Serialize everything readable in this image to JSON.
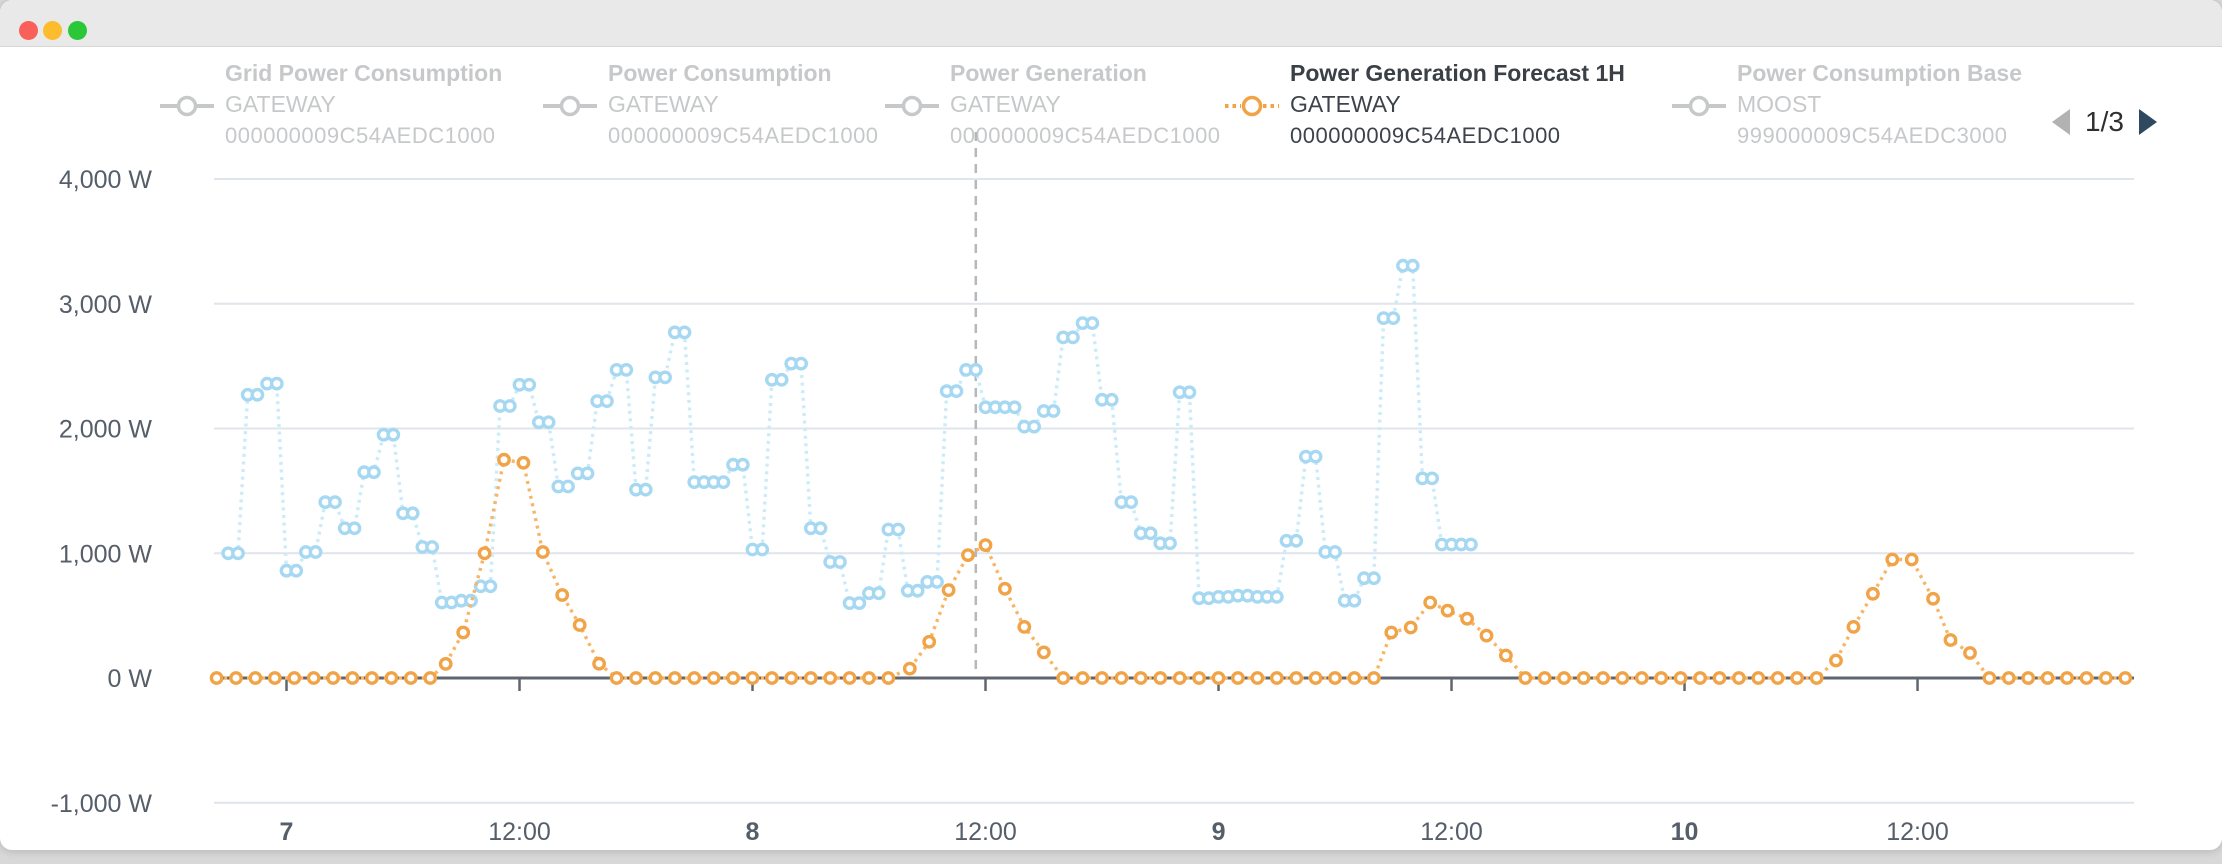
{
  "window": {
    "traffic_lights": {
      "close_color": "#f9605a",
      "minimize_color": "#fdbc2e",
      "zoom_color": "#2ac739"
    }
  },
  "legend": {
    "items": [
      {
        "title": "Grid Power Consumption",
        "device": "GATEWAY",
        "serial": "000000009C54AEDC1000",
        "active": false
      },
      {
        "title": "Power Consumption",
        "device": "GATEWAY",
        "serial": "000000009C54AEDC1000",
        "active": false
      },
      {
        "title": "Power Generation",
        "device": "GATEWAY",
        "serial": "000000009C54AEDC1000",
        "active": false
      },
      {
        "title": "Power Generation Forecast 1H",
        "device": "GATEWAY",
        "serial": "000000009C54AEDC1000",
        "active": true
      },
      {
        "title": "Power Consumption Base",
        "device": "MOOST",
        "serial": "999000009C54AEDC3000",
        "active": false
      }
    ],
    "inactive_color": "#c6c8ca",
    "active_text_color": "#3a4046",
    "pagination": {
      "label": "1/3"
    }
  },
  "colors": {
    "gridline": "#e0e4eb",
    "axis_line": "#5f6670",
    "axis_text": "#555e69",
    "now_line": "#b4b7bb",
    "blue_line": "#c9ebfa",
    "blue_marker": "#a6d8f2",
    "orange_line": "#f7b566",
    "orange_marker": "#f1a347"
  },
  "chart_data": {
    "type": "line",
    "unit": "W",
    "ylim": [
      -1000,
      4000
    ],
    "y_axis": {
      "gridline_values": [
        4000,
        3000,
        2000,
        1000,
        -1000
      ],
      "tick_labels": [
        {
          "value": 4000,
          "label": "4,000 W"
        },
        {
          "value": 3000,
          "label": "3,000 W"
        },
        {
          "value": 2000,
          "label": "2,000 W"
        },
        {
          "value": 1000,
          "label": "1,000 W"
        },
        {
          "value": 0,
          "label": "0 W"
        },
        {
          "value": -1000,
          "label": "-1,000 W"
        }
      ]
    },
    "x_axis": {
      "hour_reference": "hours from 00:00 on day 7",
      "ticks": [
        {
          "hour": 0,
          "label": "7",
          "bold": true
        },
        {
          "hour": 12,
          "label": "12:00",
          "bold": false
        },
        {
          "hour": 24,
          "label": "8",
          "bold": true
        },
        {
          "hour": 36,
          "label": "12:00",
          "bold": false
        },
        {
          "hour": 48,
          "label": "9",
          "bold": true
        },
        {
          "hour": 60,
          "label": "12:00",
          "bold": false
        },
        {
          "hour": 72,
          "label": "10",
          "bold": true
        },
        {
          "hour": 84,
          "label": "12:00",
          "bold": false
        }
      ]
    },
    "now_line_hour": 35.5,
    "series": [
      {
        "id": "light-blue-measured",
        "name": "measured power (light blue, unlabeled)",
        "marker_interval_hours": 0.5,
        "steps_format": "[start_hour, watts, marker_count]",
        "steps": [
          [
            -3,
            1000,
            2
          ],
          [
            -2,
            2270,
            2
          ],
          [
            -1,
            2360,
            2
          ],
          [
            0,
            860,
            2
          ],
          [
            1,
            1010,
            2
          ],
          [
            2,
            1410,
            2
          ],
          [
            3,
            1200,
            2
          ],
          [
            4,
            1650,
            2
          ],
          [
            5,
            1950,
            2
          ],
          [
            6,
            1320,
            2
          ],
          [
            7,
            1050,
            2
          ],
          [
            8,
            605,
            2
          ],
          [
            9,
            620,
            2
          ],
          [
            10,
            735,
            2
          ],
          [
            11,
            2180,
            2
          ],
          [
            12,
            2350,
            2
          ],
          [
            13,
            2050,
            2
          ],
          [
            14,
            1535,
            2
          ],
          [
            15,
            1640,
            2
          ],
          [
            16,
            2220,
            2
          ],
          [
            17,
            2470,
            2
          ],
          [
            18,
            1510,
            2
          ],
          [
            19,
            2410,
            2
          ],
          [
            20,
            2770,
            2
          ],
          [
            21,
            1570,
            4
          ],
          [
            23,
            1710,
            2
          ],
          [
            24,
            1030,
            2
          ],
          [
            25,
            2390,
            2
          ],
          [
            26,
            2520,
            2
          ],
          [
            27,
            1200,
            2
          ],
          [
            28,
            930,
            2
          ],
          [
            29,
            600,
            2
          ],
          [
            30,
            680,
            2
          ],
          [
            31,
            1190,
            2
          ],
          [
            32,
            700,
            2
          ],
          [
            33,
            770,
            2
          ],
          [
            34,
            2300,
            2
          ],
          [
            35,
            2470,
            2
          ],
          [
            36,
            2170,
            4
          ],
          [
            38,
            2015,
            2
          ],
          [
            39,
            2140,
            2
          ],
          [
            40,
            2730,
            2
          ],
          [
            41,
            2845,
            2
          ],
          [
            42,
            2230,
            2
          ],
          [
            43,
            1410,
            2
          ],
          [
            44,
            1160,
            2
          ],
          [
            45,
            1080,
            2
          ],
          [
            46,
            2290,
            2
          ],
          [
            47,
            640,
            2
          ],
          [
            48,
            650,
            2
          ],
          [
            49,
            660,
            2
          ],
          [
            50,
            650,
            3
          ],
          [
            51.5,
            1100,
            2
          ],
          [
            52.5,
            1775,
            2
          ],
          [
            53.5,
            1010,
            2
          ],
          [
            54.5,
            620,
            2
          ],
          [
            55.5,
            800,
            2
          ],
          [
            56.5,
            2885,
            2
          ],
          [
            57.5,
            3305,
            2
          ],
          [
            58.5,
            1600,
            2
          ],
          [
            59.5,
            1070,
            4
          ]
        ]
      },
      {
        "id": "generation-forecast",
        "name": "Power Generation Forecast 1H",
        "marker_interval_hours": 1.0,
        "steps_format": "[start_hour, watts, marker_count]",
        "steps": [
          [
            -3.6,
            0,
            12
          ],
          [
            8.2,
            113,
            1
          ],
          [
            9.1,
            365,
            1
          ],
          [
            10.2,
            1000,
            1
          ],
          [
            11.2,
            1750,
            1
          ],
          [
            12.2,
            1725,
            1
          ],
          [
            13.2,
            1010,
            1
          ],
          [
            14.2,
            665,
            1
          ],
          [
            15.1,
            425,
            1
          ],
          [
            16.1,
            115,
            1
          ],
          [
            17,
            0,
            15
          ],
          [
            32.1,
            75,
            1
          ],
          [
            33.1,
            290,
            1
          ],
          [
            34.1,
            705,
            1
          ],
          [
            35.1,
            985,
            1
          ],
          [
            36,
            1065,
            1
          ],
          [
            37,
            715,
            1
          ],
          [
            38,
            410,
            1
          ],
          [
            39,
            205,
            1
          ],
          [
            40,
            0,
            17
          ],
          [
            56.9,
            365,
            1
          ],
          [
            57.9,
            405,
            1
          ],
          [
            58.9,
            605,
            1
          ],
          [
            59.8,
            540,
            1
          ],
          [
            60.8,
            475,
            1
          ],
          [
            61.8,
            340,
            1
          ],
          [
            62.8,
            180,
            1
          ],
          [
            63.8,
            0,
            16
          ],
          [
            79.8,
            140,
            1
          ],
          [
            80.7,
            410,
            1
          ],
          [
            81.7,
            675,
            1
          ],
          [
            82.7,
            950,
            1
          ],
          [
            83.7,
            950,
            1
          ],
          [
            84.8,
            635,
            1
          ],
          [
            85.7,
            305,
            1
          ],
          [
            86.7,
            200,
            1
          ],
          [
            87.7,
            0,
            8
          ]
        ]
      }
    ]
  }
}
